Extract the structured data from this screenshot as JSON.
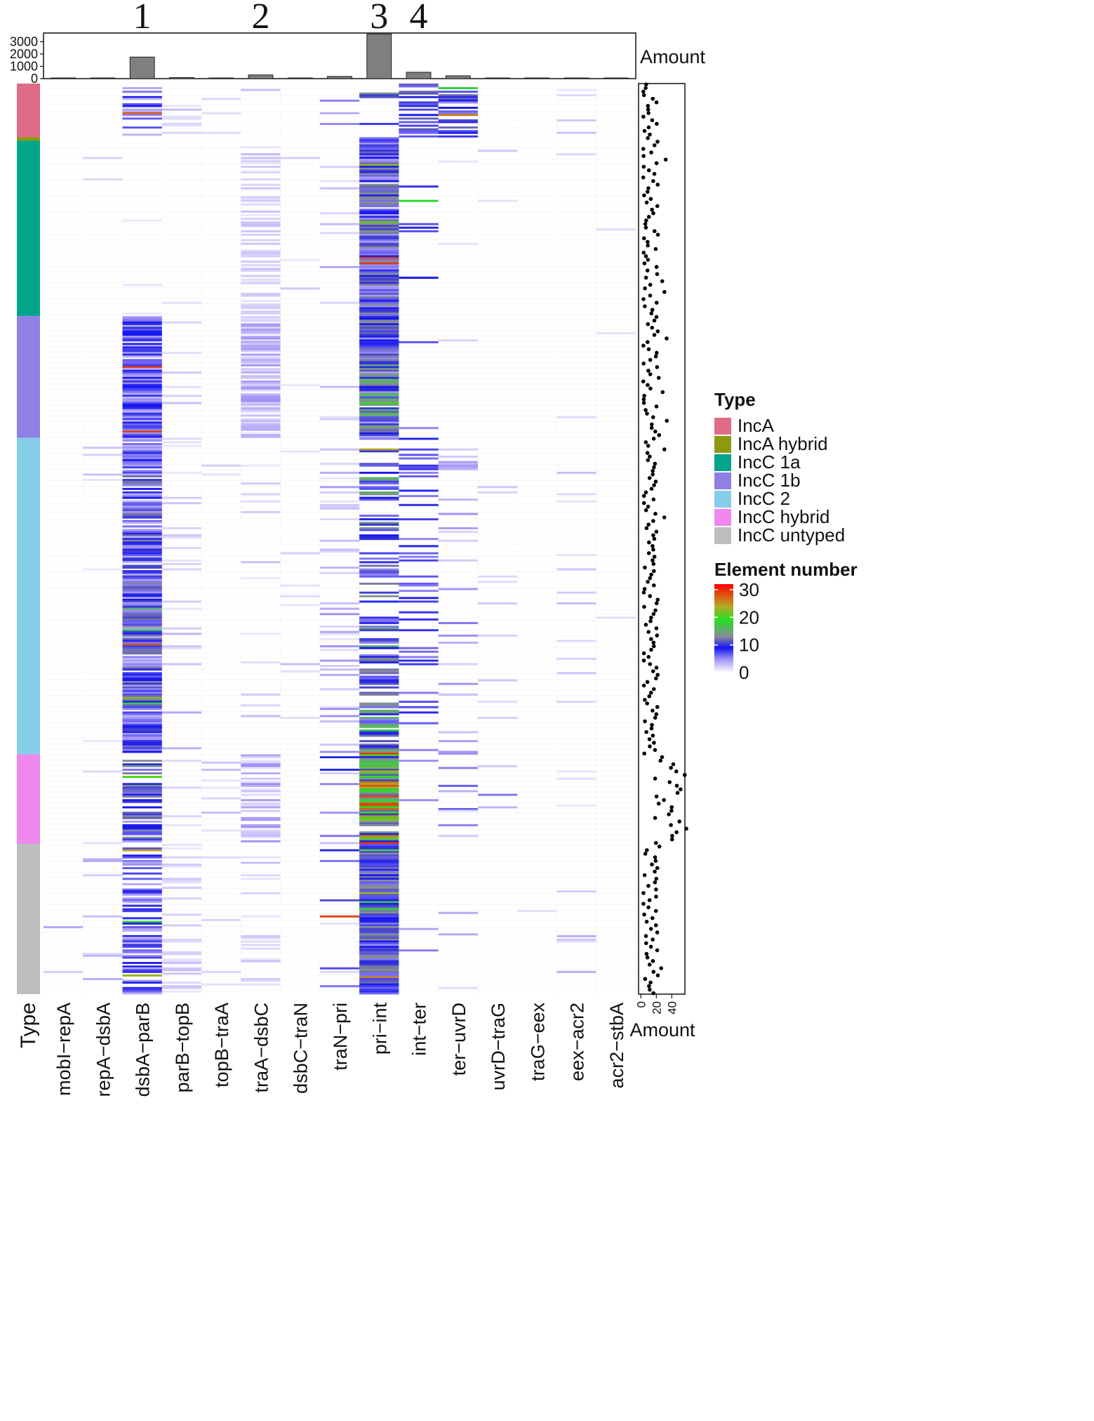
{
  "chart_data": {
    "type": "heatmap",
    "columns": [
      "mobI−repA",
      "repA−dsbA",
      "dsbA−parB",
      "parB−topB",
      "topB−traA",
      "traA−dsbC",
      "dsbC−traN",
      "traN−pri",
      "pri−int",
      "int−ter",
      "ter−uvrD",
      "uvrD−traG",
      "traG−eex",
      "eex−acr2",
      "acr2−stbA"
    ],
    "highlighted_columns": [
      {
        "label": "1",
        "column": "dsbA−parB"
      },
      {
        "label": "2",
        "column": "traA−dsbC"
      },
      {
        "label": "3",
        "column": "pri−int"
      },
      {
        "label": "4",
        "column": "int−ter"
      }
    ],
    "top_bar": {
      "label": "Amount",
      "ticks": [
        "0",
        "1000",
        "2000",
        "3000"
      ],
      "ylim": [
        0,
        3700
      ],
      "values": [
        5,
        40,
        1750,
        90,
        30,
        300,
        20,
        180,
        3620,
        520,
        230,
        50,
        30,
        40,
        15
      ]
    },
    "type_sidebar": {
      "label": "Type",
      "groups": [
        {
          "name": "IncA",
          "rows": 30,
          "color": "#e06b86"
        },
        {
          "name": "IncA hybrid",
          "rows": 2,
          "color": "#8c9a12"
        },
        {
          "name": "IncC 1a",
          "rows": 98,
          "color": "#03a48c"
        },
        {
          "name": "IncC 1b",
          "rows": 68,
          "color": "#9180e3"
        },
        {
          "name": "IncC 2",
          "rows": 177,
          "color": "#86cdea"
        },
        {
          "name": "IncC hybrid",
          "rows": 50,
          "color": "#ee88ef"
        },
        {
          "name": "IncC untyped",
          "rows": 84,
          "color": "#bdbdbd"
        }
      ]
    },
    "right_scatter": {
      "xlabel": "Amount",
      "ticks": [
        "0",
        "20",
        "40"
      ],
      "xlim": [
        -3,
        57
      ],
      "base_range": [
        3,
        22
      ],
      "hybrid_range": [
        18,
        52
      ]
    },
    "color_legend": {
      "title": "Element number",
      "ticks": [
        "30",
        "20",
        "10",
        "0"
      ],
      "range": [
        0,
        32
      ],
      "stops": [
        {
          "v": 0,
          "color": "#ffffff"
        },
        {
          "v": 5,
          "color": "#9c8ef5"
        },
        {
          "v": 9,
          "color": "#1414f0"
        },
        {
          "v": 13,
          "color": "#8a8a9a"
        },
        {
          "v": 19,
          "color": "#22e022"
        },
        {
          "v": 24,
          "color": "#b8a820"
        },
        {
          "v": 32,
          "color": "#ff0000"
        }
      ]
    },
    "type_legend": {
      "title": "Type",
      "items": [
        "IncA",
        "IncA hybrid",
        "IncC 1a",
        "IncC 1b",
        "IncC 2",
        "IncC hybrid",
        "IncC untyped"
      ]
    }
  }
}
